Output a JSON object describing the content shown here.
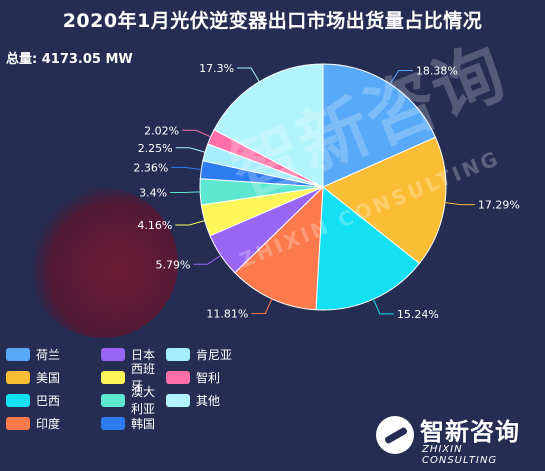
{
  "title": "2020年1月光伏逆变器出口市场出货量占比情况",
  "total": "总量: 4173.05 MW",
  "watermark": {
    "cn": "智新咨询",
    "en": "ZHIXIN CONSULTING"
  },
  "brand": {
    "name_cn": "智新咨询",
    "name_en": "ZHIXIN CONSULTING"
  },
  "chart_data": {
    "type": "pie",
    "categories": [
      "荷兰",
      "美国",
      "巴西",
      "印度",
      "日本",
      "西班牙",
      "澳大利亚",
      "韩国",
      "肯尼亚",
      "智利",
      "其他"
    ],
    "values": [
      18.38,
      17.29,
      15.24,
      11.81,
      5.79,
      4.16,
      3.4,
      2.36,
      2.25,
      2.02,
      17.3
    ],
    "labels": [
      "18.38%",
      "17.29%",
      "15.24%",
      "11.81%",
      "5.79%",
      "4.16%",
      "3.4%",
      "2.36%",
      "2.25%",
      "2.02%",
      "17.3%"
    ],
    "colors": [
      "#58a9f7",
      "#fbbd36",
      "#13e0f2",
      "#fd7a4d",
      "#9966f4",
      "#fdf65a",
      "#5ee7d0",
      "#2d7cf2",
      "#a7eefc",
      "#fd6fa6",
      "#b2f4fb"
    ],
    "legend_position": "bottom-left",
    "legend": [
      {
        "name": "荷兰",
        "color": "#58a9f7"
      },
      {
        "name": "日本",
        "color": "#9966f4"
      },
      {
        "name": "肯尼亚",
        "color": "#a7eefc"
      },
      {
        "name": "美国",
        "color": "#fbbd36"
      },
      {
        "name": "西班牙",
        "color": "#fdf65a"
      },
      {
        "name": "智利",
        "color": "#fd6fa6"
      },
      {
        "name": "巴西",
        "color": "#13e0f2"
      },
      {
        "name": "澳大利亚",
        "color": "#5ee7d0"
      },
      {
        "name": "其他",
        "color": "#b2f4fb"
      },
      {
        "name": "印度",
        "color": "#fd7a4d"
      },
      {
        "name": "韩国",
        "color": "#2d7cf2"
      }
    ]
  }
}
